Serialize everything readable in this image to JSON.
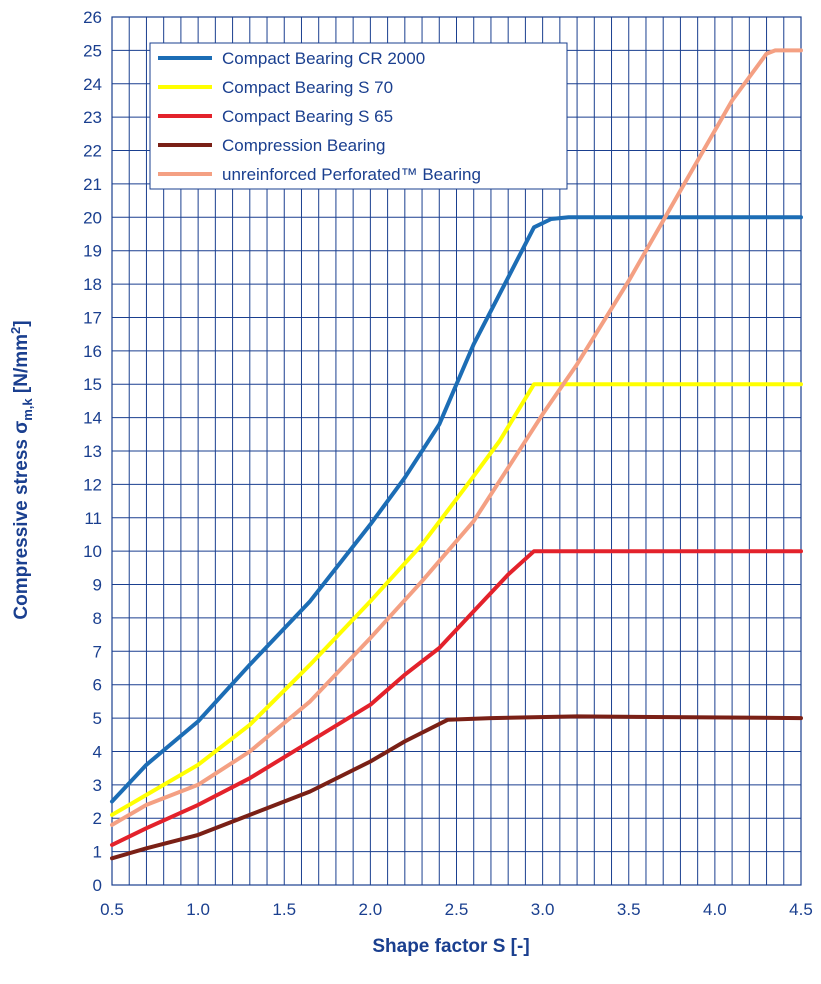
{
  "chart_data": {
    "type": "line",
    "xlabel": "Shape factor S [-]",
    "ylabel_main": "Compressive stress σ",
    "ylabel_sub": "m,k",
    "ylabel_unit_open": " [N/mm",
    "ylabel_unit_sup": "2",
    "ylabel_unit_close": "]",
    "xlim": [
      0.5,
      4.5
    ],
    "ylim": [
      0,
      26
    ],
    "x_ticks": [
      "0.5",
      "1.0",
      "1.5",
      "2.0",
      "2.5",
      "3.0",
      "3.5",
      "4.0",
      "4.5"
    ],
    "y_ticks": [
      "0",
      "1",
      "2",
      "3",
      "4",
      "5",
      "6",
      "7",
      "8",
      "9",
      "10",
      "11",
      "12",
      "13",
      "14",
      "15",
      "16",
      "17",
      "18",
      "19",
      "20",
      "21",
      "22",
      "23",
      "24",
      "25",
      "26"
    ],
    "grid": true,
    "grid_x_step": 0.1,
    "grid_y_step": 1,
    "legend_position": "top-left",
    "series": [
      {
        "name": "Compact Bearing CR 2000",
        "color": "#1c6db5",
        "points": [
          [
            0.5,
            2.5
          ],
          [
            0.7,
            3.6
          ],
          [
            1.0,
            4.9
          ],
          [
            1.3,
            6.6
          ],
          [
            1.65,
            8.5
          ],
          [
            2.0,
            10.8
          ],
          [
            2.2,
            12.2
          ],
          [
            2.4,
            13.8
          ],
          [
            2.5,
            15.0
          ],
          [
            2.6,
            16.2
          ],
          [
            2.8,
            18.2
          ],
          [
            2.95,
            19.7
          ],
          [
            3.05,
            19.95
          ],
          [
            3.15,
            20.0
          ],
          [
            4.5,
            20.0
          ]
        ]
      },
      {
        "name": "Compact Bearing S 70",
        "color": "#ffff00",
        "points": [
          [
            0.5,
            2.1
          ],
          [
            0.7,
            2.7
          ],
          [
            1.0,
            3.6
          ],
          [
            1.3,
            4.8
          ],
          [
            1.65,
            6.6
          ],
          [
            2.0,
            8.5
          ],
          [
            2.3,
            10.2
          ],
          [
            2.55,
            11.9
          ],
          [
            2.75,
            13.3
          ],
          [
            2.95,
            15.0
          ],
          [
            4.5,
            15.0
          ]
        ]
      },
      {
        "name": "Compact Bearing S 65",
        "color": "#e3222b",
        "points": [
          [
            0.5,
            1.2
          ],
          [
            0.7,
            1.7
          ],
          [
            1.0,
            2.4
          ],
          [
            1.3,
            3.2
          ],
          [
            1.65,
            4.3
          ],
          [
            2.0,
            5.4
          ],
          [
            2.2,
            6.3
          ],
          [
            2.4,
            7.1
          ],
          [
            2.6,
            8.2
          ],
          [
            2.8,
            9.3
          ],
          [
            2.95,
            10.0
          ],
          [
            4.5,
            10.0
          ]
        ]
      },
      {
        "name": "Compression Bearing",
        "color": "#7a2016",
        "points": [
          [
            0.5,
            0.8
          ],
          [
            0.7,
            1.1
          ],
          [
            1.0,
            1.5
          ],
          [
            1.3,
            2.1
          ],
          [
            1.65,
            2.8
          ],
          [
            2.0,
            3.7
          ],
          [
            2.2,
            4.3
          ],
          [
            2.45,
            4.95
          ],
          [
            2.7,
            5.0
          ],
          [
            3.2,
            5.05
          ],
          [
            4.5,
            5.0
          ]
        ]
      },
      {
        "name": "unreinforced Perforated™ Bearing",
        "color": "#f4a083",
        "points": [
          [
            0.5,
            1.8
          ],
          [
            0.7,
            2.4
          ],
          [
            1.0,
            3.0
          ],
          [
            1.3,
            4.0
          ],
          [
            1.65,
            5.5
          ],
          [
            2.0,
            7.4
          ],
          [
            2.3,
            9.1
          ],
          [
            2.6,
            10.9
          ],
          [
            2.8,
            12.5
          ],
          [
            3.0,
            14.1
          ],
          [
            3.2,
            15.6
          ],
          [
            3.5,
            18.1
          ],
          [
            3.8,
            20.8
          ],
          [
            4.1,
            23.5
          ],
          [
            4.3,
            24.9
          ],
          [
            4.35,
            25.0
          ],
          [
            4.5,
            25.0
          ]
        ]
      }
    ]
  }
}
